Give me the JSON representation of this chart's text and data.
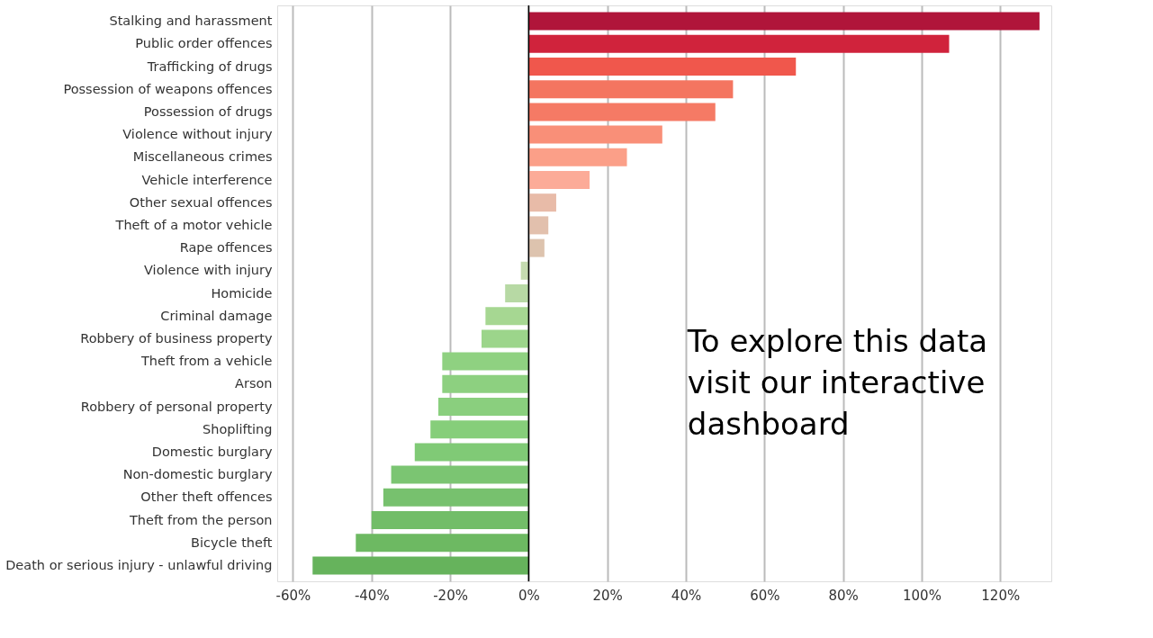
{
  "chart_data": {
    "type": "bar",
    "orientation": "horizontal",
    "categories": [
      "Stalking and harassment",
      "Public order offences",
      "Trafficking of drugs",
      "Possession of weapons offences",
      "Possession of drugs",
      "Violence without injury",
      "Miscellaneous crimes",
      "Vehicle interference",
      "Other sexual offences",
      "Theft of a motor vehicle",
      "Rape offences",
      "Violence with injury",
      "Homicide",
      "Criminal damage",
      "Robbery of business property",
      "Theft from a vehicle",
      "Arson",
      "Robbery of personal property",
      "Shoplifting",
      "Domestic burglary",
      "Non-domestic burglary",
      "Other theft offences",
      "Theft from the person",
      "Bicycle theft",
      "Death or serious injury - unlawful driving"
    ],
    "values": [
      130,
      107,
      68,
      52,
      47.5,
      34,
      25,
      15.5,
      7,
      5,
      4,
      -2,
      -6,
      -11,
      -12,
      -22,
      -22,
      -23,
      -25,
      -29,
      -35,
      -37,
      -40,
      -44,
      -55
    ],
    "colors": [
      "#b0153a",
      "#d0233c",
      "#f0574c",
      "#f47560",
      "#f57a65",
      "#f98f78",
      "#fb9f88",
      "#fcab98",
      "#e8bba8",
      "#e2c0ad",
      "#ddc3ae",
      "#c5dbb0",
      "#b7d9a4",
      "#a6d792",
      "#9cd58b",
      "#8fd181",
      "#8dd080",
      "#8acf7e",
      "#86ce7a",
      "#80ca76",
      "#7bc572",
      "#77c16e",
      "#72bd68",
      "#6db962",
      "#66b35c"
    ],
    "xlim": [
      -64,
      133
    ],
    "xticks": [
      {
        "value": -60,
        "label": "-60%"
      },
      {
        "value": -40,
        "label": "-40%"
      },
      {
        "value": -20,
        "label": "-20%"
      },
      {
        "value": 0,
        "label": "0%"
      },
      {
        "value": 20,
        "label": "20%"
      },
      {
        "value": 40,
        "label": "40%"
      },
      {
        "value": 60,
        "label": "60%"
      },
      {
        "value": 80,
        "label": "80%"
      },
      {
        "value": 100,
        "label": "100%"
      },
      {
        "value": 120,
        "label": "120%"
      }
    ],
    "grid": "x",
    "ref_lines": [
      {
        "axis": "x",
        "value": 0,
        "color": "#000000"
      }
    ],
    "annotations": [
      "To explore this data visit our interactive dashboard"
    ]
  }
}
